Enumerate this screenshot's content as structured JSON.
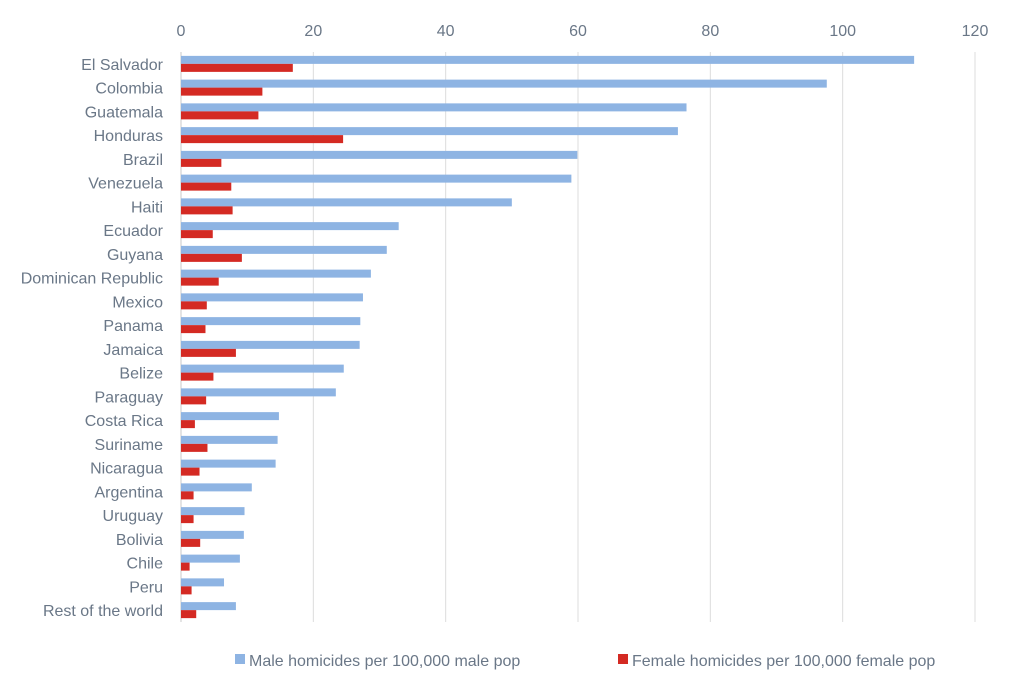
{
  "chart_data": {
    "type": "bar",
    "orientation": "horizontal",
    "categories": [
      "El Salvador",
      "Colombia",
      "Guatemala",
      "Honduras",
      "Brazil",
      "Venezuela",
      "Haiti",
      "Ecuador",
      "Guyana",
      "Dominican Republic",
      "Mexico",
      "Panama",
      "Jamaica",
      "Belize",
      "Paraguay",
      "Costa Rica",
      "Suriname",
      "Nicaragua",
      "Argentina",
      "Uruguay",
      "Bolivia",
      "Chile",
      "Peru",
      "Rest of the world"
    ],
    "series": [
      {
        "name": "Male homicides per 100,000 male pop",
        "color": "#8eb4e3",
        "values": [
          110.8,
          97.6,
          76.4,
          75.1,
          59.9,
          59.0,
          50.0,
          32.9,
          31.1,
          28.7,
          27.5,
          27.1,
          27.0,
          24.6,
          23.4,
          14.8,
          14.6,
          14.3,
          10.7,
          9.6,
          9.5,
          8.9,
          6.5,
          8.3
        ]
      },
      {
        "name": "Female homicides per 100,000 female pop",
        "color": "#d42a23",
        "values": [
          16.9,
          12.3,
          11.7,
          24.5,
          6.1,
          7.6,
          7.8,
          4.8,
          9.2,
          5.7,
          3.9,
          3.7,
          8.3,
          4.9,
          3.8,
          2.1,
          4.0,
          2.8,
          1.9,
          1.9,
          2.9,
          1.3,
          1.6,
          2.3
        ]
      }
    ],
    "xlim": [
      0,
      120
    ],
    "xticks": [
      "0",
      "20",
      "40",
      "60",
      "80",
      "100",
      "120"
    ],
    "x_axis_position": "top",
    "grid": "vertical",
    "legend": "bottom",
    "title": "",
    "xlabel": "",
    "ylabel": ""
  }
}
